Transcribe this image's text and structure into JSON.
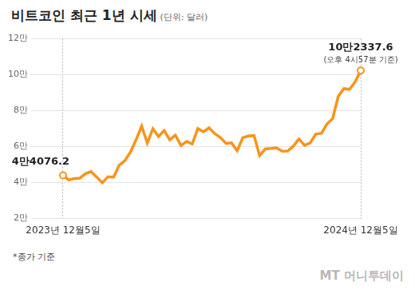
{
  "chart_data": {
    "type": "line",
    "title": "비트코인 최근 1년 시세",
    "subtitle": "(단위: 달러)",
    "categories": [
      "2023년 12월5일",
      null,
      null,
      null,
      null,
      null,
      null,
      null,
      null,
      null,
      null,
      null,
      null,
      null,
      null,
      null,
      null,
      null,
      null,
      null,
      null,
      null,
      null,
      null,
      null,
      null,
      null,
      null,
      null,
      null,
      null,
      null,
      null,
      null,
      null,
      null,
      null,
      null,
      null,
      null,
      null,
      null,
      null,
      null,
      null,
      null,
      null,
      null,
      null,
      null,
      null,
      null,
      null,
      "2024년 12월5일"
    ],
    "values": [
      44076.2,
      41500,
      42300,
      42500,
      45000,
      46100,
      43100,
      39900,
      43300,
      43100,
      49700,
      52200,
      57000,
      63800,
      71500,
      62000,
      70000,
      65600,
      69000,
      63800,
      66400,
      60600,
      62900,
      61500,
      70100,
      68300,
      70500,
      67300,
      65100,
      61800,
      62100,
      57700,
      65000,
      65900,
      66200,
      55100,
      58700,
      59000,
      59400,
      57500,
      57600,
      60300,
      64300,
      60800,
      62100,
      67000,
      67400,
      72700,
      75600,
      88000,
      92300,
      91900,
      96000,
      102337.6
    ],
    "value_labels": [
      "4만4076.2",
      null,
      null,
      null,
      null,
      null,
      null,
      null,
      null,
      null,
      null,
      null,
      null,
      null,
      null,
      null,
      null,
      null,
      null,
      null,
      null,
      null,
      null,
      null,
      null,
      null,
      null,
      null,
      null,
      null,
      null,
      null,
      null,
      null,
      null,
      null,
      null,
      null,
      null,
      null,
      null,
      null,
      null,
      null,
      null,
      null,
      null,
      null,
      null,
      null,
      null,
      null,
      null,
      "10만2337.6"
    ],
    "value_label_note": "(오후 4시57분 기준)",
    "color": "#f7941d",
    "ylim": [
      20000,
      120000
    ],
    "yticks": [
      {
        "value": 20000,
        "label": "2만"
      },
      {
        "value": 40000,
        "label": "4만"
      },
      {
        "value": 60000,
        "label": "6만"
      },
      {
        "value": 80000,
        "label": "8만"
      },
      {
        "value": 100000,
        "label": "10만"
      },
      {
        "value": 120000,
        "label": "12만"
      }
    ],
    "grid": true,
    "footnote": "*종가 기준",
    "source": "MT 머니투데이"
  }
}
